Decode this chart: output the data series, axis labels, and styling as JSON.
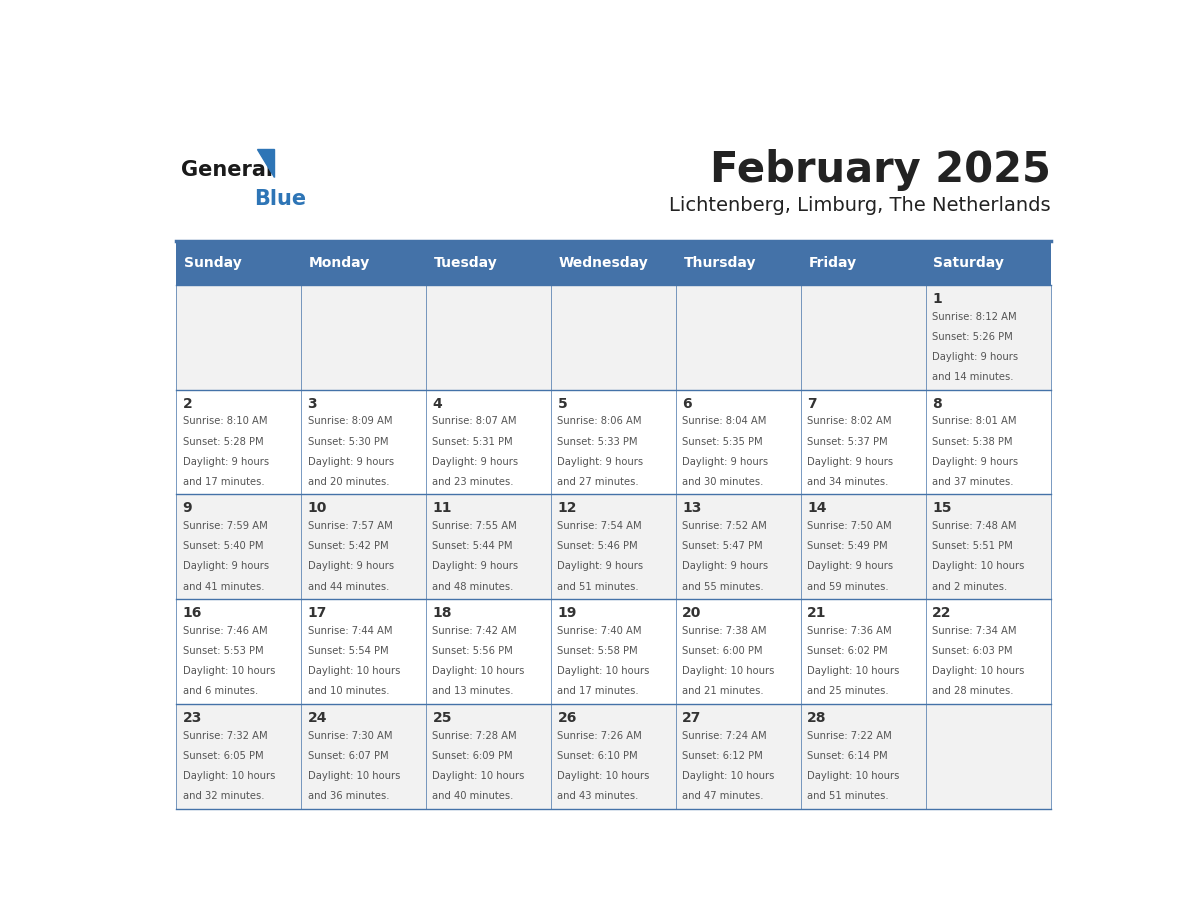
{
  "title": "February 2025",
  "subtitle": "Lichtenberg, Limburg, The Netherlands",
  "days_of_week": [
    "Sunday",
    "Monday",
    "Tuesday",
    "Wednesday",
    "Thursday",
    "Friday",
    "Saturday"
  ],
  "header_bg": "#4472a8",
  "header_text_color": "#ffffff",
  "cell_bg_light": "#f2f2f2",
  "cell_bg_white": "#ffffff",
  "border_color": "#4472a8",
  "day_number_color": "#333333",
  "text_color": "#555555",
  "title_color": "#222222",
  "logo_general_color": "#1a1a1a",
  "logo_blue_color": "#2e75b6",
  "calendar_data": [
    {
      "day": 1,
      "week": 0,
      "weekday": 6,
      "sunrise": "8:12 AM",
      "sunset": "5:26 PM",
      "daylight": "9 hours and 14 minutes."
    },
    {
      "day": 2,
      "week": 1,
      "weekday": 0,
      "sunrise": "8:10 AM",
      "sunset": "5:28 PM",
      "daylight": "9 hours and 17 minutes."
    },
    {
      "day": 3,
      "week": 1,
      "weekday": 1,
      "sunrise": "8:09 AM",
      "sunset": "5:30 PM",
      "daylight": "9 hours and 20 minutes."
    },
    {
      "day": 4,
      "week": 1,
      "weekday": 2,
      "sunrise": "8:07 AM",
      "sunset": "5:31 PM",
      "daylight": "9 hours and 23 minutes."
    },
    {
      "day": 5,
      "week": 1,
      "weekday": 3,
      "sunrise": "8:06 AM",
      "sunset": "5:33 PM",
      "daylight": "9 hours and 27 minutes."
    },
    {
      "day": 6,
      "week": 1,
      "weekday": 4,
      "sunrise": "8:04 AM",
      "sunset": "5:35 PM",
      "daylight": "9 hours and 30 minutes."
    },
    {
      "day": 7,
      "week": 1,
      "weekday": 5,
      "sunrise": "8:02 AM",
      "sunset": "5:37 PM",
      "daylight": "9 hours and 34 minutes."
    },
    {
      "day": 8,
      "week": 1,
      "weekday": 6,
      "sunrise": "8:01 AM",
      "sunset": "5:38 PM",
      "daylight": "9 hours and 37 minutes."
    },
    {
      "day": 9,
      "week": 2,
      "weekday": 0,
      "sunrise": "7:59 AM",
      "sunset": "5:40 PM",
      "daylight": "9 hours and 41 minutes."
    },
    {
      "day": 10,
      "week": 2,
      "weekday": 1,
      "sunrise": "7:57 AM",
      "sunset": "5:42 PM",
      "daylight": "9 hours and 44 minutes."
    },
    {
      "day": 11,
      "week": 2,
      "weekday": 2,
      "sunrise": "7:55 AM",
      "sunset": "5:44 PM",
      "daylight": "9 hours and 48 minutes."
    },
    {
      "day": 12,
      "week": 2,
      "weekday": 3,
      "sunrise": "7:54 AM",
      "sunset": "5:46 PM",
      "daylight": "9 hours and 51 minutes."
    },
    {
      "day": 13,
      "week": 2,
      "weekday": 4,
      "sunrise": "7:52 AM",
      "sunset": "5:47 PM",
      "daylight": "9 hours and 55 minutes."
    },
    {
      "day": 14,
      "week": 2,
      "weekday": 5,
      "sunrise": "7:50 AM",
      "sunset": "5:49 PM",
      "daylight": "9 hours and 59 minutes."
    },
    {
      "day": 15,
      "week": 2,
      "weekday": 6,
      "sunrise": "7:48 AM",
      "sunset": "5:51 PM",
      "daylight": "10 hours and 2 minutes."
    },
    {
      "day": 16,
      "week": 3,
      "weekday": 0,
      "sunrise": "7:46 AM",
      "sunset": "5:53 PM",
      "daylight": "10 hours and 6 minutes."
    },
    {
      "day": 17,
      "week": 3,
      "weekday": 1,
      "sunrise": "7:44 AM",
      "sunset": "5:54 PM",
      "daylight": "10 hours and 10 minutes."
    },
    {
      "day": 18,
      "week": 3,
      "weekday": 2,
      "sunrise": "7:42 AM",
      "sunset": "5:56 PM",
      "daylight": "10 hours and 13 minutes."
    },
    {
      "day": 19,
      "week": 3,
      "weekday": 3,
      "sunrise": "7:40 AM",
      "sunset": "5:58 PM",
      "daylight": "10 hours and 17 minutes."
    },
    {
      "day": 20,
      "week": 3,
      "weekday": 4,
      "sunrise": "7:38 AM",
      "sunset": "6:00 PM",
      "daylight": "10 hours and 21 minutes."
    },
    {
      "day": 21,
      "week": 3,
      "weekday": 5,
      "sunrise": "7:36 AM",
      "sunset": "6:02 PM",
      "daylight": "10 hours and 25 minutes."
    },
    {
      "day": 22,
      "week": 3,
      "weekday": 6,
      "sunrise": "7:34 AM",
      "sunset": "6:03 PM",
      "daylight": "10 hours and 28 minutes."
    },
    {
      "day": 23,
      "week": 4,
      "weekday": 0,
      "sunrise": "7:32 AM",
      "sunset": "6:05 PM",
      "daylight": "10 hours and 32 minutes."
    },
    {
      "day": 24,
      "week": 4,
      "weekday": 1,
      "sunrise": "7:30 AM",
      "sunset": "6:07 PM",
      "daylight": "10 hours and 36 minutes."
    },
    {
      "day": 25,
      "week": 4,
      "weekday": 2,
      "sunrise": "7:28 AM",
      "sunset": "6:09 PM",
      "daylight": "10 hours and 40 minutes."
    },
    {
      "day": 26,
      "week": 4,
      "weekday": 3,
      "sunrise": "7:26 AM",
      "sunset": "6:10 PM",
      "daylight": "10 hours and 43 minutes."
    },
    {
      "day": 27,
      "week": 4,
      "weekday": 4,
      "sunrise": "7:24 AM",
      "sunset": "6:12 PM",
      "daylight": "10 hours and 47 minutes."
    },
    {
      "day": 28,
      "week": 4,
      "weekday": 5,
      "sunrise": "7:22 AM",
      "sunset": "6:14 PM",
      "daylight": "10 hours and 51 minutes."
    }
  ]
}
